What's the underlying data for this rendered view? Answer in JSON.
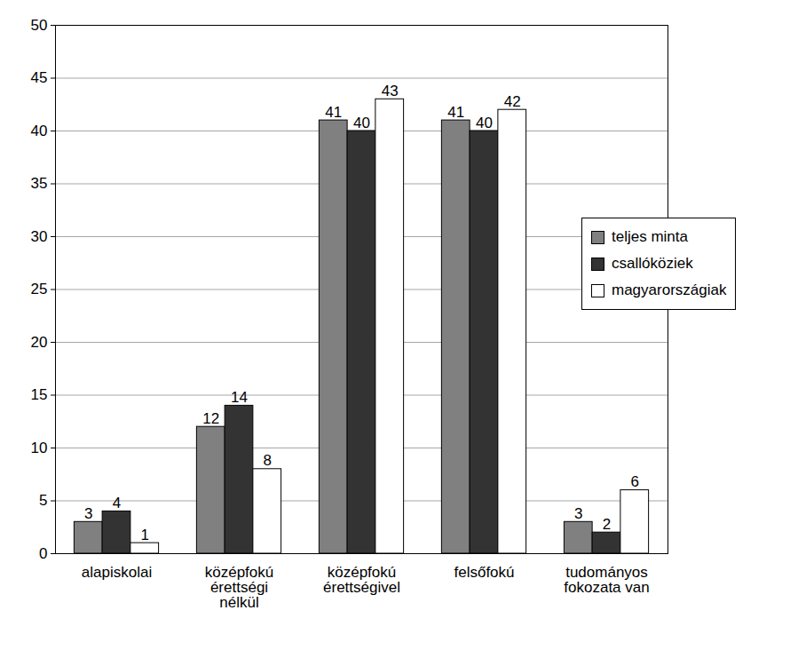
{
  "chart_data": {
    "type": "bar",
    "categories": [
      "alapiskolai",
      "középfokú érettségi nélkül",
      "középfokú érettségivel",
      "felsőfokú",
      "tudományos fokozata van"
    ],
    "series": [
      {
        "name": "teljes minta",
        "color": "#808080",
        "values": [
          3,
          12,
          41,
          41,
          3
        ]
      },
      {
        "name": "csallóköziek",
        "color": "#333333",
        "values": [
          4,
          14,
          40,
          40,
          2
        ]
      },
      {
        "name": "magyarországiak",
        "color": "#ffffff",
        "values": [
          1,
          8,
          43,
          42,
          6
        ]
      }
    ],
    "ylim": [
      0,
      50
    ],
    "yticks": [
      0,
      5,
      10,
      15,
      20,
      25,
      30,
      35,
      40,
      45,
      50
    ],
    "grid": true,
    "legend": "right",
    "data_labels": true
  }
}
